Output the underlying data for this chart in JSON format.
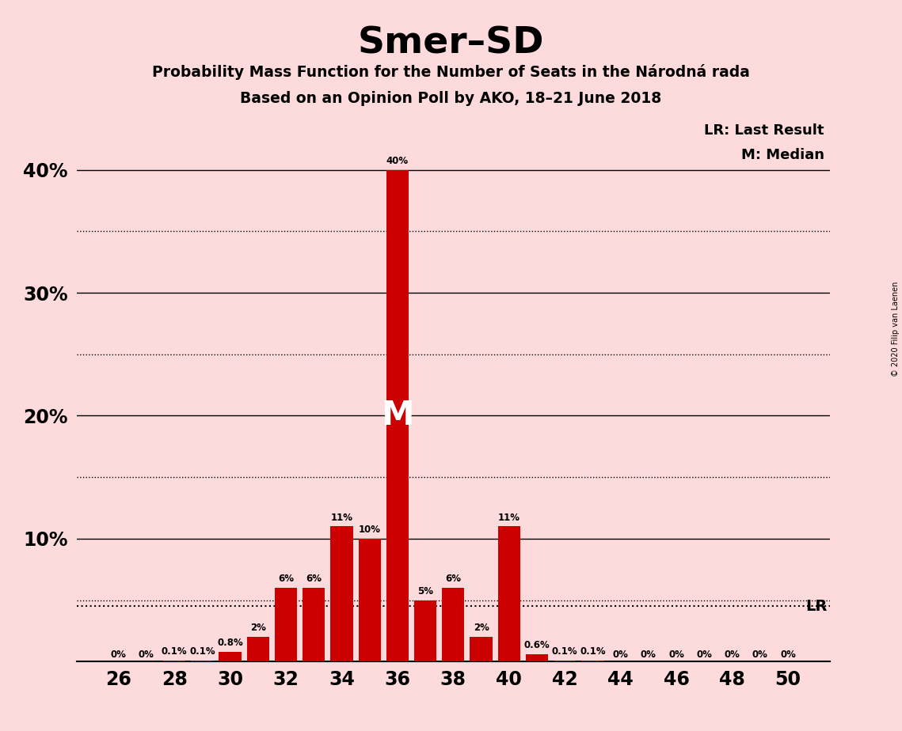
{
  "title": "Smer–SD",
  "subtitle1": "Probability Mass Function for the Number of Seats in the Národná rada",
  "subtitle2": "Based on an Opinion Poll by AKO, 18–21 June 2018",
  "background_color": "#FDDADB",
  "bar_color": "#CC0000",
  "seats": [
    26,
    27,
    28,
    29,
    30,
    31,
    32,
    33,
    34,
    35,
    36,
    37,
    38,
    39,
    40,
    41,
    42,
    43,
    44,
    45,
    46,
    47,
    48,
    49,
    50
  ],
  "probabilities": [
    0.0,
    0.0,
    0.1,
    0.1,
    0.8,
    2.0,
    6.0,
    6.0,
    11.0,
    10.0,
    40.0,
    5.0,
    6.0,
    2.0,
    11.0,
    0.6,
    0.1,
    0.1,
    0.0,
    0.0,
    0.0,
    0.0,
    0.0,
    0.0,
    0.0
  ],
  "labels": [
    "0%",
    "0%",
    "0.1%",
    "0.1%",
    "0.8%",
    "2%",
    "6%",
    "6%",
    "11%",
    "10%",
    "40%",
    "5%",
    "6%",
    "2%",
    "11%",
    "0.6%",
    "0.1%",
    "0.1%",
    "0%",
    "0%",
    "0%",
    "0%",
    "0%",
    "0%",
    "0%"
  ],
  "median_seat": 36,
  "lr_value": 4.5,
  "ylim": [
    0,
    44
  ],
  "yticks": [
    0,
    10,
    20,
    30,
    40
  ],
  "ytick_labels": [
    "",
    "10%",
    "20%",
    "30%",
    "40%"
  ],
  "xticks": [
    26,
    28,
    30,
    32,
    34,
    36,
    38,
    40,
    42,
    44,
    46,
    48,
    50
  ],
  "xlim_left": 24.5,
  "xlim_right": 51.5,
  "copyright_text": "© 2020 Filip van Laenen",
  "legend_lr": "LR: Last Result",
  "legend_m": "M: Median",
  "grid_solid": [
    10,
    20,
    30,
    40
  ],
  "grid_dotted": [
    5,
    15,
    25,
    35
  ],
  "bar_width": 0.8
}
